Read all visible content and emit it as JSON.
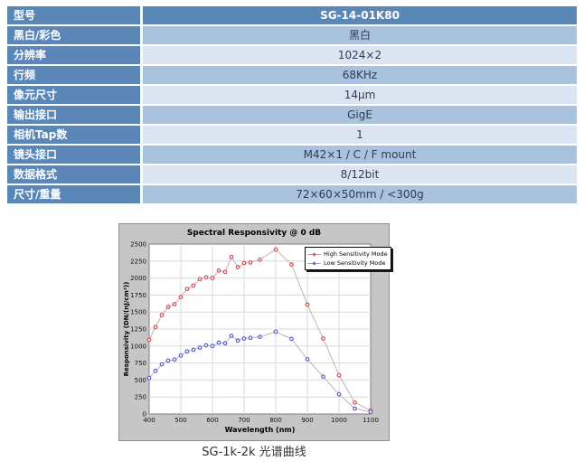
{
  "table": {
    "rows": [
      {
        "label": "型号",
        "value": "SG-14-01K80"
      },
      {
        "label": "黑白/彩色",
        "value": "黑白"
      },
      {
        "label": "分辨率",
        "value": "1024×2"
      },
      {
        "label": "行频",
        "value": "68KHz"
      },
      {
        "label": "像元尺寸",
        "value": "14μm"
      },
      {
        "label": "输出接口",
        "value": "GigE"
      },
      {
        "label": "相机Tap数",
        "value": "1"
      },
      {
        "label": "镜头接口",
        "value": "M42×1 / C / F mount"
      },
      {
        "label": "数据格式",
        "value": "8/12bit"
      },
      {
        "label": "尺寸/重量",
        "value": "72×60×50mm / <300g"
      }
    ],
    "colors": {
      "label_bg": "#5b87b8",
      "row_medium_bg": "#a9c2de",
      "row_light_bg": "#dbe5f1",
      "header_text": "#ffffff",
      "value_text": "#2e3c55"
    }
  },
  "chart_data": {
    "type": "line",
    "title": "Spectral Responsivity @ 0 dB",
    "xlabel": "Wavelength (nm)",
    "ylabel": "Responsivity (DN/(nJ/cm²))",
    "xlim": [
      400,
      1100
    ],
    "ylim": [
      0,
      2500
    ],
    "x_ticks": [
      400,
      500,
      600,
      700,
      800,
      900,
      1000,
      1100
    ],
    "y_ticks": [
      0,
      250,
      500,
      750,
      1000,
      1250,
      1500,
      1750,
      2000,
      2250,
      2500
    ],
    "grid": true,
    "legend_position": "top-right",
    "line_color": "#b8b8b8",
    "grid_color": "#d9d9d9",
    "x": [
      400,
      420,
      440,
      460,
      480,
      500,
      520,
      540,
      560,
      580,
      600,
      620,
      640,
      660,
      680,
      700,
      720,
      750,
      800,
      850,
      900,
      950,
      1000,
      1050,
      1100
    ],
    "series": [
      {
        "name": "High Sensitivity Mode",
        "color": "#d95151",
        "values": [
          1090,
          1280,
          1455,
          1575,
          1615,
          1720,
          1840,
          1890,
          1985,
          2010,
          2000,
          2110,
          2090,
          2310,
          2160,
          2220,
          2230,
          2270,
          2420,
          2200,
          1610,
          1110,
          570,
          170,
          50
        ]
      },
      {
        "name": "Low Sensitivity Mode",
        "color": "#5b63d3",
        "values": [
          530,
          635,
          730,
          785,
          800,
          860,
          920,
          945,
          975,
          1010,
          1000,
          1050,
          1040,
          1150,
          1080,
          1110,
          1120,
          1135,
          1210,
          1105,
          805,
          550,
          290,
          80,
          30
        ]
      }
    ]
  },
  "caption": "SG-1k-2k 光谱曲线"
}
